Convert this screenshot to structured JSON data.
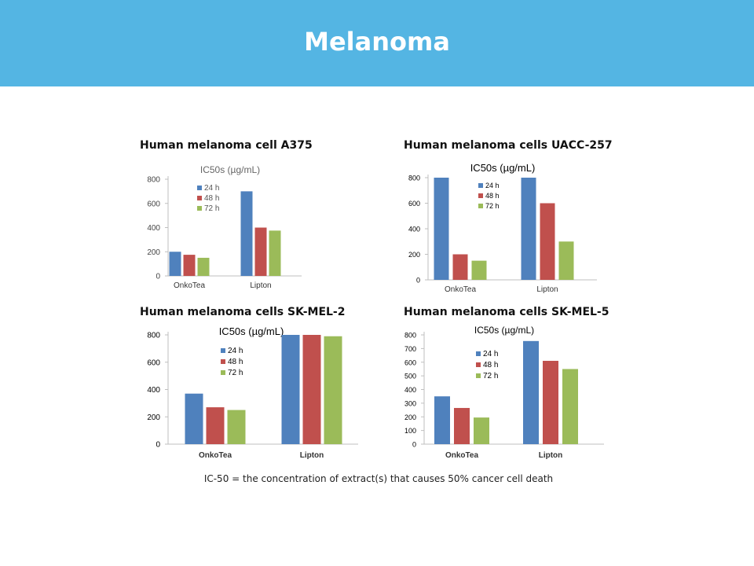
{
  "slide": {
    "title": "Melanoma",
    "header_color": "#54b5e3"
  },
  "footnote": "IC-50 = the concentration of extract(s) that causes 50% cancer cell death",
  "colors": {
    "24 h": "#4f81bd",
    "48 h": "#c0504d",
    "72 h": "#9bbb59"
  },
  "chart_data": [
    {
      "type": "bar",
      "panel_title": "Human melanoma cell A375",
      "title": "IC50s  (µg/mL)",
      "categories": [
        "OnkoTea",
        "Lipton"
      ],
      "series": [
        {
          "name": "24 h",
          "values": [
            200,
            700
          ]
        },
        {
          "name": "48 h",
          "values": [
            175,
            400
          ]
        },
        {
          "name": "72 h",
          "values": [
            150,
            375
          ]
        }
      ],
      "yticks": [
        "0",
        "200",
        "400",
        "600",
        "800"
      ],
      "ylim": [
        0,
        800
      ],
      "legend": "top-left",
      "grid": false
    },
    {
      "type": "bar",
      "panel_title": "Human melanoma cells UACC-257",
      "title": "IC50s (µg/mL)",
      "categories": [
        "OnkoTea",
        "Lipton"
      ],
      "series": [
        {
          "name": "24 h",
          "values": [
            800,
            800
          ]
        },
        {
          "name": "48 h",
          "values": [
            200,
            600
          ]
        },
        {
          "name": "72 h",
          "values": [
            150,
            300
          ]
        }
      ],
      "yticks": [
        "0",
        "200",
        "400",
        "600",
        "800"
      ],
      "ylim": [
        0,
        800
      ],
      "legend": "top-center",
      "grid": false
    },
    {
      "type": "bar",
      "panel_title": "Human melanoma cells SK-MEL-2",
      "title": "IC50s (µg/mL)",
      "categories": [
        "OnkoTea",
        "Lipton"
      ],
      "series": [
        {
          "name": "24 h",
          "values": [
            370,
            800
          ]
        },
        {
          "name": "48 h",
          "values": [
            270,
            800
          ]
        },
        {
          "name": "72 h",
          "values": [
            250,
            790
          ]
        }
      ],
      "yticks": [
        "0",
        "200",
        "400",
        "600",
        "800"
      ],
      "ylim": [
        0,
        800
      ],
      "legend": "top-center",
      "grid": false
    },
    {
      "type": "bar",
      "panel_title": "Human melanoma cells SK-MEL-5",
      "title": "IC50s (µg/mL)",
      "categories": [
        "OnkoTea",
        "Lipton"
      ],
      "series": [
        {
          "name": "24 h",
          "values": [
            350,
            755
          ]
        },
        {
          "name": "48 h",
          "values": [
            265,
            610
          ]
        },
        {
          "name": "72 h",
          "values": [
            195,
            550
          ]
        }
      ],
      "yticks": [
        "0",
        "100",
        "200",
        "300",
        "400",
        "500",
        "600",
        "700",
        "800"
      ],
      "ylim": [
        0,
        800
      ],
      "legend": "top-center",
      "grid": false
    }
  ]
}
